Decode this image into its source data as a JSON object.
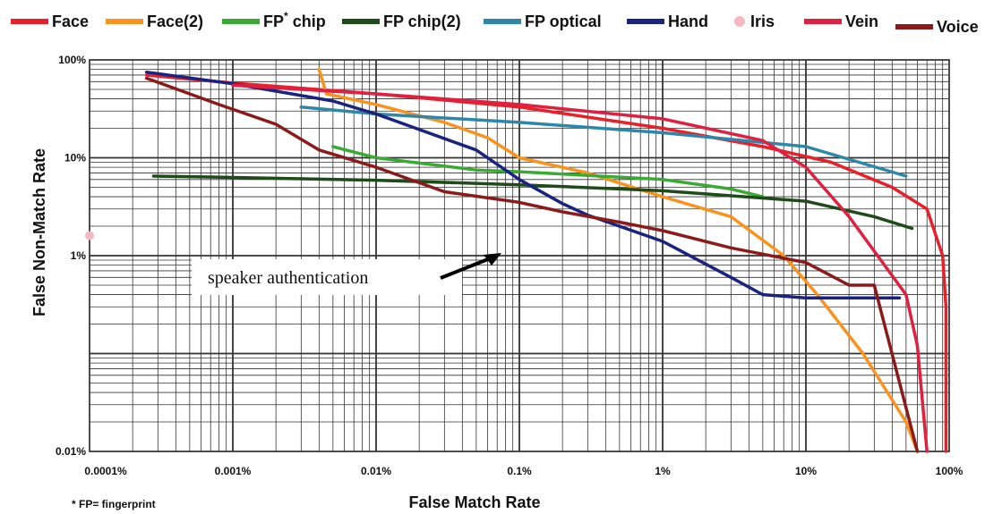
{
  "chart_data": {
    "type": "line",
    "xlabel": "False Match Rate",
    "ylabel": "False Non-Match Rate",
    "x_scale": "log",
    "y_scale": "log",
    "xlim": [
      0.0001,
      100
    ],
    "ylim": [
      0.01,
      100
    ],
    "x_tick_labels": [
      "0.0001%",
      "0.001%",
      "0.01%",
      "0.1%",
      "1%",
      "10%",
      "100%"
    ],
    "y_tick_labels": [
      "100%",
      "10%",
      "1%",
      "0.01%"
    ],
    "grid": true,
    "legend_position": "top",
    "footnote": "* FP= fingerprint",
    "annotation": "speaker  authentication",
    "legend": [
      {
        "name": "Face",
        "suffix": "",
        "color": "#e8202a"
      },
      {
        "name": "Face(2)",
        "suffix": "",
        "color": "#f7931e"
      },
      {
        "name": "FP",
        "sup": "*",
        "suffix": " chip",
        "color": "#3aaa35"
      },
      {
        "name": "FP chip(2)",
        "suffix": "",
        "color": "#1f4a1a"
      },
      {
        "name": "FP optical",
        "suffix": "",
        "color": "#2e86a8"
      },
      {
        "name": "Hand",
        "suffix": "",
        "color": "#1a237e"
      },
      {
        "name": "Iris",
        "suffix": "",
        "color": "#f4b8c0",
        "marker": "dot"
      },
      {
        "name": "Vein",
        "suffix": "",
        "color": "#e02040"
      },
      {
        "name": "Voice",
        "suffix": "",
        "color": "#8b1a1a"
      }
    ],
    "series": [
      {
        "name": "Face",
        "color": "#e8202a",
        "points": [
          [
            0.00025,
            70
          ],
          [
            0.001,
            58
          ],
          [
            0.01,
            45
          ],
          [
            0.1,
            33
          ],
          [
            1,
            20
          ],
          [
            5,
            13
          ],
          [
            15,
            9
          ],
          [
            40,
            5
          ],
          [
            70,
            3
          ],
          [
            90,
            1
          ],
          [
            95,
            0.3
          ],
          [
            95,
            0.01
          ]
        ]
      },
      {
        "name": "Face(2)",
        "color": "#f7931e",
        "points": [
          [
            0.004,
            80
          ],
          [
            0.0045,
            45
          ],
          [
            0.01,
            35
          ],
          [
            0.03,
            23
          ],
          [
            0.06,
            16
          ],
          [
            0.1,
            10
          ],
          [
            0.3,
            7
          ],
          [
            1,
            4
          ],
          [
            3,
            2.5
          ],
          [
            7,
            1
          ],
          [
            12,
            0.4
          ],
          [
            25,
            0.1
          ],
          [
            50,
            0.02
          ],
          [
            60,
            0.01
          ]
        ]
      },
      {
        "name": "FP chip",
        "color": "#3aaa35",
        "points": [
          [
            0.005,
            13
          ],
          [
            0.01,
            10
          ],
          [
            0.05,
            7.5
          ],
          [
            0.1,
            7.2
          ],
          [
            1,
            6
          ],
          [
            3,
            4.8
          ],
          [
            5,
            4
          ]
        ]
      },
      {
        "name": "FP chip(2)",
        "color": "#1f4a1a",
        "points": [
          [
            0.00028,
            6.5
          ],
          [
            0.001,
            6.3
          ],
          [
            0.01,
            5.9
          ],
          [
            0.1,
            5.3
          ],
          [
            1,
            4.6
          ],
          [
            10,
            3.6
          ],
          [
            30,
            2.5
          ],
          [
            55,
            1.9
          ]
        ]
      },
      {
        "name": "FP optical",
        "color": "#2e86a8",
        "points": [
          [
            0.003,
            33
          ],
          [
            0.01,
            28
          ],
          [
            0.1,
            23
          ],
          [
            1,
            18
          ],
          [
            10,
            13
          ],
          [
            50,
            6.5
          ]
        ]
      },
      {
        "name": "Hand",
        "color": "#1a237e",
        "points": [
          [
            0.00025,
            75
          ],
          [
            0.001,
            57
          ],
          [
            0.005,
            38
          ],
          [
            0.01,
            28
          ],
          [
            0.05,
            12
          ],
          [
            0.1,
            6
          ],
          [
            0.2,
            3.4
          ],
          [
            0.3,
            2.6
          ],
          [
            1,
            1.4
          ],
          [
            3,
            0.6
          ],
          [
            5,
            0.4
          ],
          [
            10,
            0.37
          ],
          [
            45,
            0.37
          ]
        ]
      },
      {
        "name": "Iris",
        "color": "#f4b8c0",
        "marker": "dot",
        "points": [
          [
            0.0001,
            1.6
          ]
        ]
      },
      {
        "name": "Vein",
        "color": "#e02040",
        "points": [
          [
            0.001,
            55
          ],
          [
            0.01,
            45
          ],
          [
            0.1,
            35
          ],
          [
            1,
            25
          ],
          [
            5,
            15
          ],
          [
            10,
            8
          ],
          [
            20,
            2.5
          ],
          [
            50,
            0.4
          ],
          [
            60,
            0.12
          ],
          [
            70,
            0.01
          ]
        ]
      },
      {
        "name": "Voice",
        "color": "#8b1a1a",
        "points": [
          [
            0.00025,
            65
          ],
          [
            0.0008,
            35
          ],
          [
            0.002,
            22
          ],
          [
            0.004,
            12
          ],
          [
            0.01,
            8
          ],
          [
            0.03,
            4.5
          ],
          [
            0.1,
            3.5
          ],
          [
            0.2,
            2.8
          ],
          [
            0.5,
            2.2
          ],
          [
            1,
            1.8
          ],
          [
            3,
            1.2
          ],
          [
            10,
            0.85
          ],
          [
            20,
            0.5
          ],
          [
            30,
            0.5
          ],
          [
            60,
            0.01
          ]
        ]
      }
    ]
  }
}
